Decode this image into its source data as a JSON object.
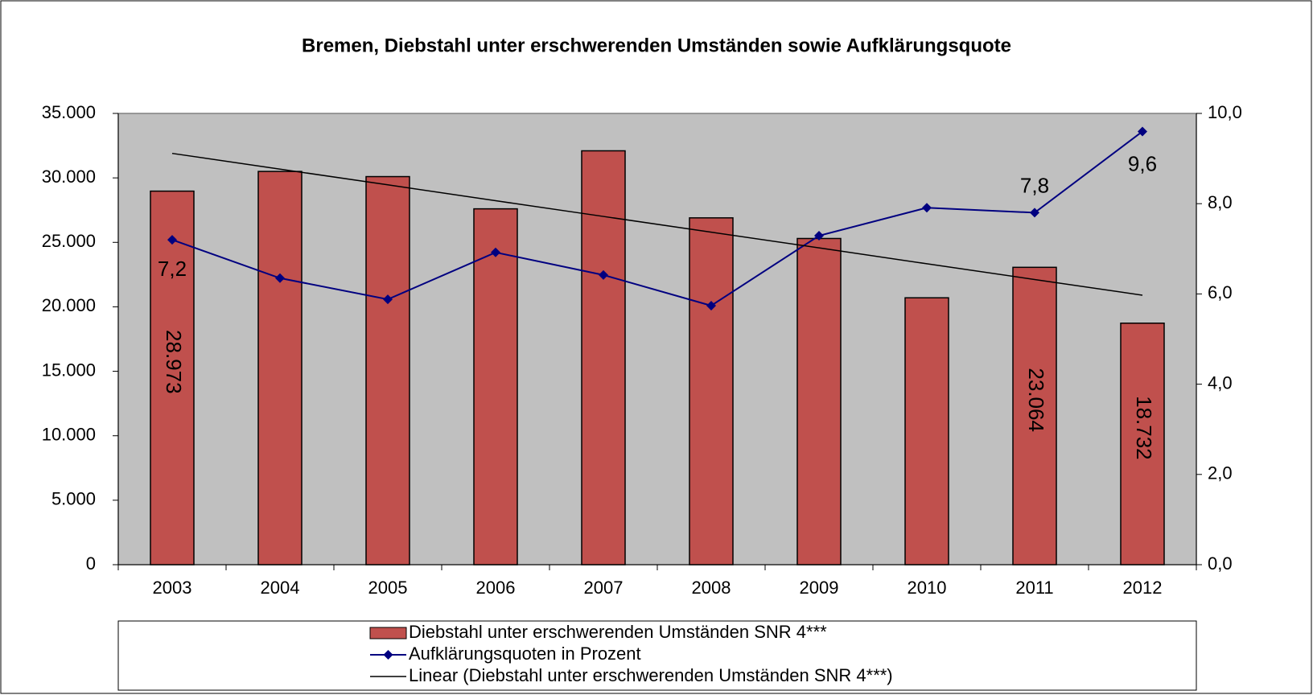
{
  "chart_data": {
    "type": "bar",
    "title": "Bremen, Diebstahl unter erschwerenden Umständen sowie Aufklärungsquote",
    "categories": [
      "2003",
      "2004",
      "2005",
      "2006",
      "2007",
      "2008",
      "2009",
      "2010",
      "2011",
      "2012"
    ],
    "series": [
      {
        "name": "Diebstahl unter erschwerenden Umständen SNR 4***",
        "type": "bar",
        "color": "#c0504d",
        "values": [
          28973,
          30500,
          30100,
          27600,
          32100,
          26900,
          25300,
          20700,
          23064,
          18732
        ],
        "value_labels": [
          "28.973",
          null,
          null,
          null,
          null,
          null,
          null,
          null,
          "23.064",
          "18.732"
        ]
      },
      {
        "name": "Aufklärungsquoten in Prozent",
        "type": "line",
        "axis": "y2",
        "color": "#000080",
        "values": [
          7.2,
          6.35,
          5.88,
          6.92,
          6.42,
          5.74,
          7.29,
          7.91,
          7.8,
          9.6
        ],
        "value_labels": [
          "7,2",
          null,
          null,
          null,
          null,
          null,
          null,
          null,
          "7,8",
          "9,6"
        ]
      },
      {
        "name": "Linear (Diebstahl unter erschwerenden Umständen SNR 4***)",
        "type": "line",
        "color": "#000000",
        "values": [
          31900,
          30680,
          29460,
          28230,
          27010,
          25790,
          24570,
          23340,
          22120,
          20900
        ]
      }
    ],
    "ylim": [
      0,
      35000
    ],
    "yticks": [
      {
        "value": 0,
        "label": "0"
      },
      {
        "value": 5000,
        "label": "5.000"
      },
      {
        "value": 10000,
        "label": "10.000"
      },
      {
        "value": 15000,
        "label": "15.000"
      },
      {
        "value": 20000,
        "label": "20.000"
      },
      {
        "value": 25000,
        "label": "25.000"
      },
      {
        "value": 30000,
        "label": "30.000"
      },
      {
        "value": 35000,
        "label": "35.000"
      }
    ],
    "y2lim": [
      0,
      10
    ],
    "y2ticks": [
      {
        "value": 0,
        "label": "0,0"
      },
      {
        "value": 2,
        "label": "2,0"
      },
      {
        "value": 4,
        "label": "4,0"
      },
      {
        "value": 6,
        "label": "6,0"
      },
      {
        "value": 8,
        "label": "8,0"
      },
      {
        "value": 10,
        "label": "10,0"
      }
    ],
    "legend": "bottom"
  }
}
